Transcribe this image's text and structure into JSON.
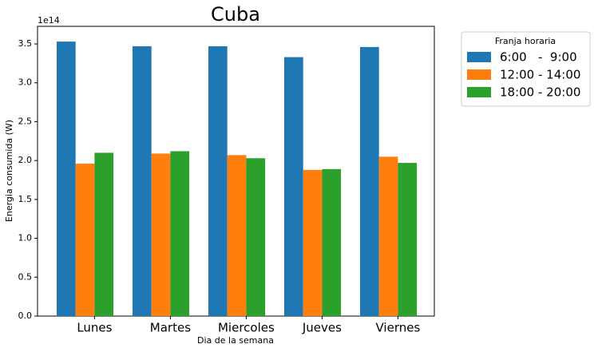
{
  "chart_data": {
    "type": "bar",
    "title": "Cuba",
    "x_label": "Dia de la semana",
    "y_label": "Energia consumida  (W)",
    "y_offset_label": "1e14",
    "categories": [
      "Lunes",
      "Martes",
      "Miercoles",
      "Jueves",
      "Viernes"
    ],
    "legend_title": "Franja horaria",
    "legend": "upper right outside",
    "series": [
      {
        "name": "6:00   -  9:00",
        "color": "#1f77b4",
        "values": [
          3.53,
          3.47,
          3.47,
          3.33,
          3.46
        ]
      },
      {
        "name": "12:00 - 14:00",
        "color": "#ff7f0e",
        "values": [
          1.96,
          2.09,
          2.07,
          1.88,
          2.05
        ]
      },
      {
        "name": "18:00 - 20:00",
        "color": "#2ca02c",
        "values": [
          2.1,
          2.12,
          2.03,
          1.89,
          1.97
        ]
      }
    ],
    "ylim": [
      0,
      3.726
    ],
    "yticks": [
      {
        "value": 0,
        "label": "0.0"
      },
      0.5,
      {
        "value": 1,
        "label": "1.0"
      },
      1.5,
      {
        "value": 2,
        "label": "2.0"
      },
      2.5,
      {
        "value": 3,
        "label": "3.0"
      },
      3.5
    ],
    "grid": false
  }
}
